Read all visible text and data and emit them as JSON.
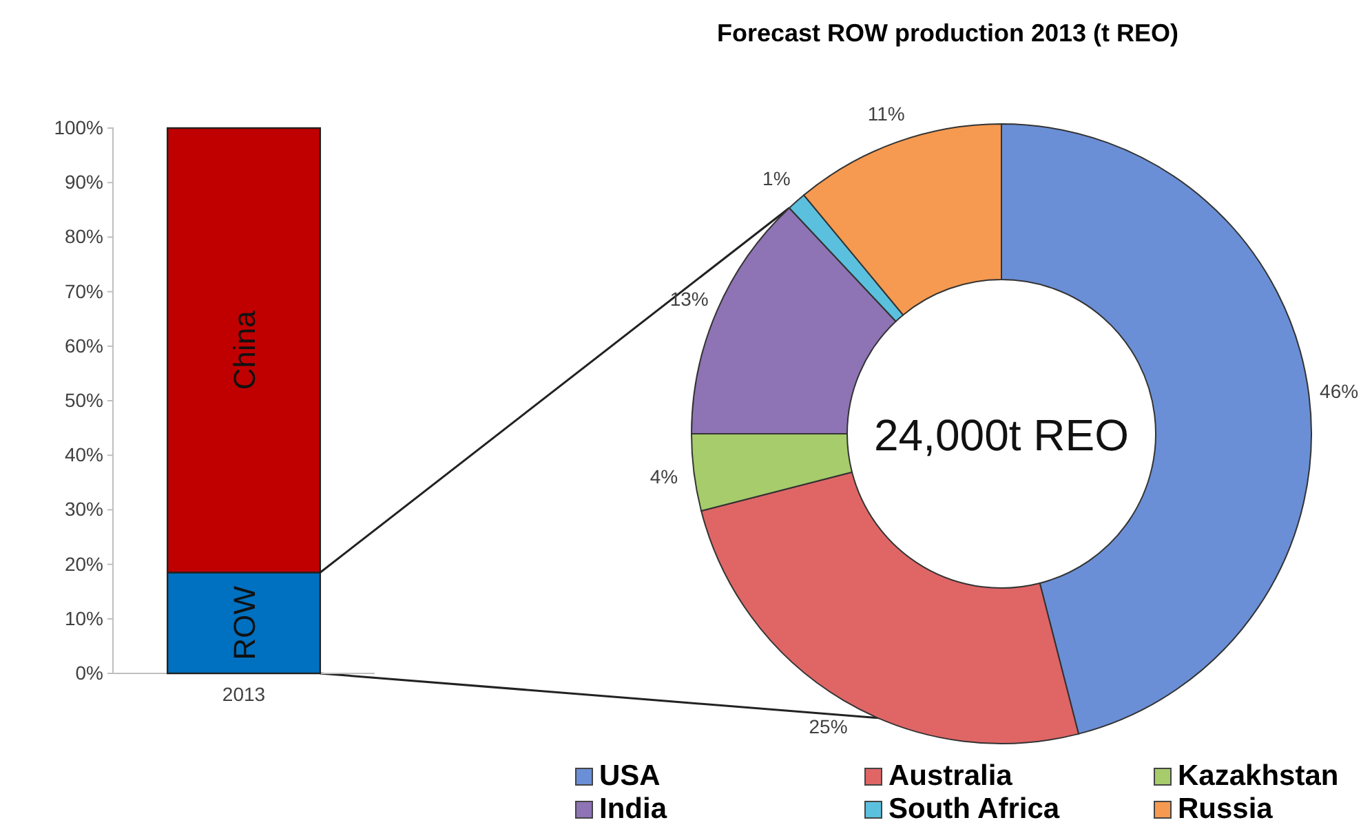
{
  "chart_data": [
    {
      "type": "bar",
      "stacked": true,
      "categories": [
        "2013"
      ],
      "series": [
        {
          "name": "ROW",
          "color": "#0070c0",
          "values": [
            18.5
          ]
        },
        {
          "name": "China",
          "color": "#c00000",
          "values": [
            81.5
          ]
        }
      ],
      "ylim": [
        0,
        100
      ],
      "yticks": [
        {
          "value": 0,
          "label": "0%"
        },
        {
          "value": 10,
          "label": "10%"
        },
        {
          "value": 20,
          "label": "20%"
        },
        {
          "value": 30,
          "label": "30%"
        },
        {
          "value": 40,
          "label": "40%"
        },
        {
          "value": 50,
          "label": "50%"
        },
        {
          "value": 60,
          "label": "60%"
        },
        {
          "value": 70,
          "label": "70%"
        },
        {
          "value": 80,
          "label": "80%"
        },
        {
          "value": 90,
          "label": "90%"
        },
        {
          "value": 100,
          "label": "100%"
        }
      ]
    },
    {
      "type": "donut",
      "title": "Forecast ROW production 2013 (t REO)",
      "categories": [
        "USA",
        "Australia",
        "Kazakhstan",
        "India",
        "South Africa",
        "Russia"
      ],
      "values": [
        46,
        25,
        4,
        13,
        1,
        11
      ],
      "colors": [
        "#6a8fd6",
        "#e06666",
        "#a6cc6b",
        "#8e73b5",
        "#5bc0de",
        "#f59a50"
      ],
      "value_labels": [
        "46%",
        "25%",
        "4%",
        "13%",
        "1%",
        "11%"
      ],
      "legend": "bottom",
      "annotations": [
        "24,000t REO"
      ]
    }
  ]
}
